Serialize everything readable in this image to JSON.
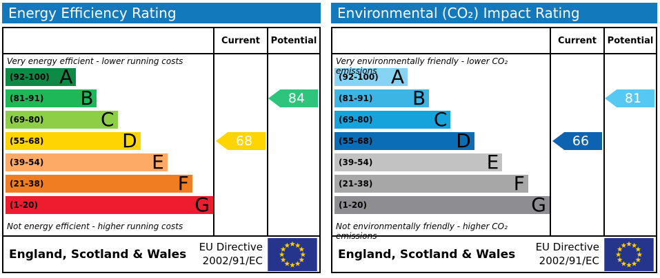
{
  "charts": [
    {
      "title": "Energy Efficiency Rating",
      "header_color": "#1379bd",
      "column_headers": {
        "current": "Current",
        "potential": "Potential"
      },
      "top_note": "Very energy efficient - lower running costs",
      "bottom_note": "Not energy efficient - higher running costs",
      "bands": [
        {
          "range": "(92-100)",
          "letter": "A",
          "color": "#0e8a47",
          "width_pct": 34
        },
        {
          "range": "(81-91)",
          "letter": "B",
          "color": "#1fb858",
          "width_pct": 44
        },
        {
          "range": "(69-80)",
          "letter": "C",
          "color": "#8dce46",
          "width_pct": 54
        },
        {
          "range": "(55-68)",
          "letter": "D",
          "color": "#ffd500",
          "width_pct": 65
        },
        {
          "range": "(39-54)",
          "letter": "E",
          "color": "#fcaa65",
          "width_pct": 78
        },
        {
          "range": "(21-38)",
          "letter": "F",
          "color": "#f07d22",
          "width_pct": 90
        },
        {
          "range": "(1-20)",
          "letter": "G",
          "color": "#ed1c2e",
          "width_pct": 100
        }
      ],
      "current": {
        "value": "68",
        "band_index": 3,
        "color": "#ffd500"
      },
      "potential": {
        "value": "84",
        "band_index": 1,
        "color": "#2fc47c"
      },
      "footer": {
        "region": "England, Scotland & Wales",
        "directive_line1": "EU Directive",
        "directive_line2": "2002/91/EC"
      }
    },
    {
      "title": "Environmental (CO₂) Impact Rating",
      "header_color": "#1379bd",
      "column_headers": {
        "current": "Current",
        "potential": "Potential"
      },
      "top_note": "Very environmentally friendly - lower CO₂ emissions",
      "bottom_note": "Not environmentally friendly - higher CO₂ emissions",
      "bands": [
        {
          "range": "(92-100)",
          "letter": "A",
          "color": "#87d3f3",
          "width_pct": 34
        },
        {
          "range": "(81-91)",
          "letter": "B",
          "color": "#3cb5e5",
          "width_pct": 44
        },
        {
          "range": "(69-80)",
          "letter": "C",
          "color": "#16a3dc",
          "width_pct": 54
        },
        {
          "range": "(55-68)",
          "letter": "D",
          "color": "#0a6db6",
          "width_pct": 65
        },
        {
          "range": "(39-54)",
          "letter": "E",
          "color": "#c2c2c2",
          "width_pct": 78
        },
        {
          "range": "(21-38)",
          "letter": "F",
          "color": "#a7a7a7",
          "width_pct": 90
        },
        {
          "range": "(1-20)",
          "letter": "G",
          "color": "#8e8e92",
          "width_pct": 100
        }
      ],
      "current": {
        "value": "66",
        "band_index": 3,
        "color": "#0d63b0"
      },
      "potential": {
        "value": "81",
        "band_index": 1,
        "color": "#55c9f2"
      },
      "footer": {
        "region": "England, Scotland & Wales",
        "directive_line1": "EU Directive",
        "directive_line2": "2002/91/EC"
      }
    }
  ],
  "eu_flag": {
    "background": "#26358c",
    "star_color": "#ffcc00",
    "star_count": 12
  },
  "chart_data": [
    {
      "type": "bar",
      "title": "Energy Efficiency Rating",
      "categories": [
        "A (92-100)",
        "B (81-91)",
        "C (69-80)",
        "D (55-68)",
        "E (39-54)",
        "F (21-38)",
        "G (1-20)"
      ],
      "values": [
        34,
        44,
        54,
        65,
        78,
        90,
        100
      ],
      "ylabel": "band bar length (% of scale column, decorative EPC scale)",
      "annotations": {
        "current": 68,
        "current_band": "D",
        "potential": 84,
        "potential_band": "B"
      },
      "top_note": "Very energy efficient - lower running costs",
      "bottom_note": "Not energy efficient - higher running costs",
      "footer": "England, Scotland & Wales — EU Directive 2002/91/EC",
      "legend_position": "none"
    },
    {
      "type": "bar",
      "title": "Environmental (CO₂) Impact Rating",
      "categories": [
        "A (92-100)",
        "B (81-91)",
        "C (69-80)",
        "D (55-68)",
        "E (39-54)",
        "F (21-38)",
        "G (1-20)"
      ],
      "values": [
        34,
        44,
        54,
        65,
        78,
        90,
        100
      ],
      "ylabel": "band bar length (% of scale column, decorative EPC scale)",
      "annotations": {
        "current": 66,
        "current_band": "D",
        "potential": 81,
        "potential_band": "B"
      },
      "top_note": "Very environmentally friendly - lower CO₂ emissions",
      "bottom_note": "Not environmentally friendly - higher CO₂ emissions",
      "footer": "England, Scotland & Wales — EU Directive 2002/91/EC",
      "legend_position": "none"
    }
  ]
}
